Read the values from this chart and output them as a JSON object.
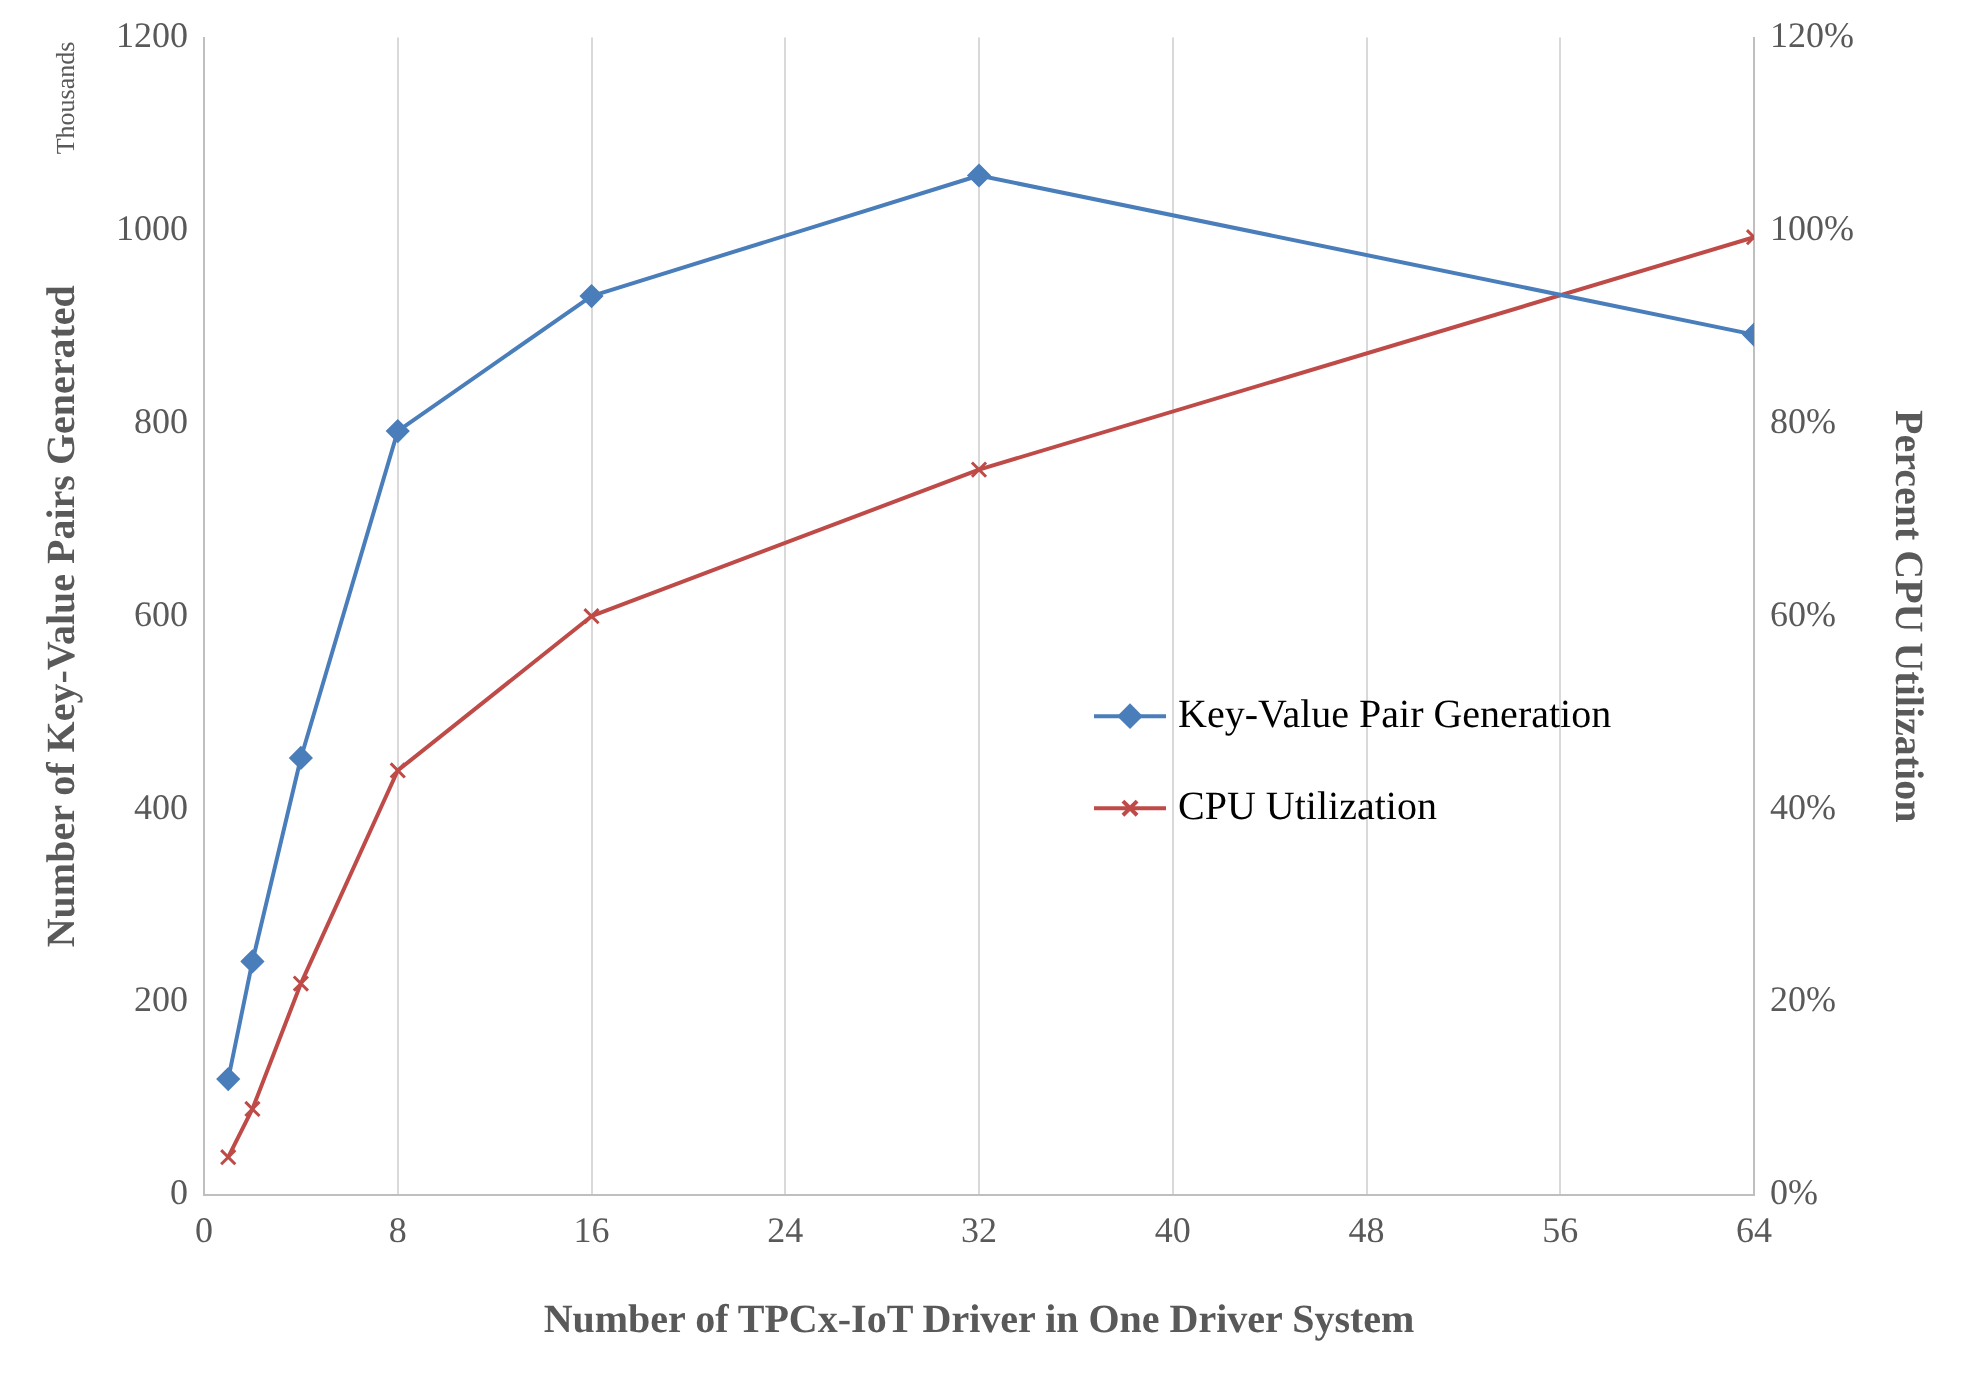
{
  "chart_data": {
    "type": "line",
    "xlabel": "Number of TPCx-IoT Driver in One Driver System",
    "ylabel": "Number of Key-Value Pairs Generated",
    "y2label": "Percent CPU Utilization",
    "annotations": [
      "Thousands"
    ],
    "xlim": [
      0,
      64
    ],
    "xticks": [
      0,
      8,
      16,
      24,
      32,
      40,
      48,
      56,
      64
    ],
    "ylim": [
      0,
      1200
    ],
    "yticks": [
      0,
      200,
      400,
      600,
      800,
      1000,
      1200
    ],
    "y2lim": [
      0,
      120
    ],
    "y2ticks": [
      {
        "value": 0,
        "label": "0%"
      },
      {
        "value": 20,
        "label": "20%"
      },
      {
        "value": 40,
        "label": "40%"
      },
      {
        "value": 60,
        "label": "60%"
      },
      {
        "value": 80,
        "label": "80%"
      },
      {
        "value": 100,
        "label": "100%"
      },
      {
        "value": 120,
        "label": "120%"
      }
    ],
    "grid": "x",
    "legend": "right",
    "x": [
      1,
      2,
      4,
      8,
      16,
      32,
      64
    ],
    "series": [
      {
        "name": "Key-Value Pair Generation",
        "color": "#4a7ebb",
        "marker": "diamond",
        "values": [
          120,
          242,
          453,
          792,
          932,
          1057,
          892
        ]
      },
      {
        "name": "CPU Utilization",
        "color": "#be4b48",
        "marker": "cross",
        "axis": "y2",
        "values": [
          3.9,
          8.9,
          21.9,
          44,
          60,
          75.2,
          99.3
        ]
      }
    ]
  }
}
